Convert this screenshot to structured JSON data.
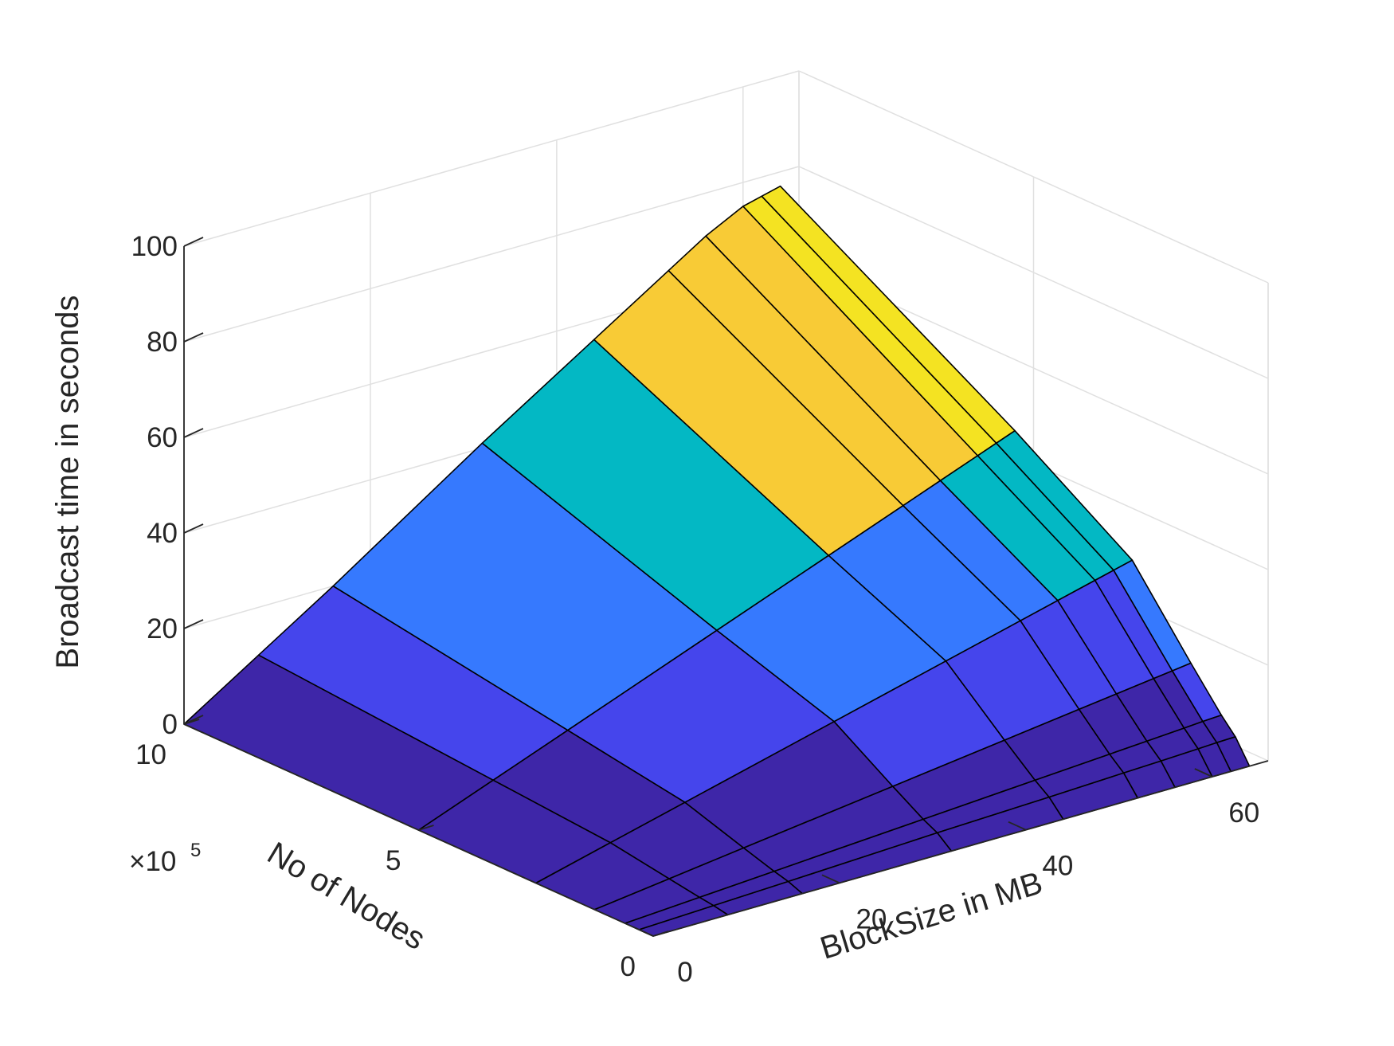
{
  "chart_data": {
    "type": "surface",
    "title": "",
    "zlabel": "Broadcast time in seconds",
    "ylabel": "BlockSize in MB",
    "xlabel": "No of Nodes",
    "x_multiplier_text": "×10",
    "x_multiplier_exp": "5",
    "zlim": [
      0,
      100
    ],
    "xlim": [
      0,
      1000000
    ],
    "ylim": [
      0,
      66
    ],
    "grid": true,
    "z_ticks": [
      "0",
      "20",
      "40",
      "60",
      "80",
      "100"
    ],
    "x_ticks": [
      "10",
      "5",
      "0"
    ],
    "y_ticks": [
      "0",
      "20",
      "40",
      "60"
    ],
    "colormap": [
      "#3e26a8",
      "#4545ec",
      "#3679fe",
      "#03b8c4",
      "#f8cb36",
      "#f4e322"
    ],
    "block_size_mb": [
      0,
      8,
      16,
      32,
      44,
      52,
      56,
      60,
      62,
      64
    ],
    "nodes": [
      0,
      30000,
      60000,
      125000,
      250000,
      500000,
      1000000
    ],
    "broadcast_time_s": [
      [
        0,
        0,
        0,
        0,
        0,
        0,
        0,
        0,
        0,
        0
      ],
      [
        0,
        0.6,
        1.2,
        2.5,
        3.3,
        3.9,
        4.2,
        4.5,
        4.7,
        4.8
      ],
      [
        0,
        1.0,
        2.0,
        4.0,
        5.5,
        6.5,
        7.0,
        7.5,
        7.8,
        8.0
      ],
      [
        0,
        2.0,
        4.0,
        8.0,
        11.0,
        13.0,
        14.0,
        15.0,
        15.5,
        16.0
      ],
      [
        0,
        4.0,
        8.0,
        16.0,
        22.0,
        26.0,
        28.0,
        30.0,
        31.0,
        32.0
      ],
      [
        0,
        6.0,
        12.0,
        24.0,
        33.0,
        39.0,
        42.0,
        45.0,
        46.5,
        48.0
      ],
      [
        0,
        10.0,
        20.0,
        41.0,
        56.0,
        66.0,
        71.0,
        75.0,
        76.0,
        77.0
      ]
    ]
  }
}
